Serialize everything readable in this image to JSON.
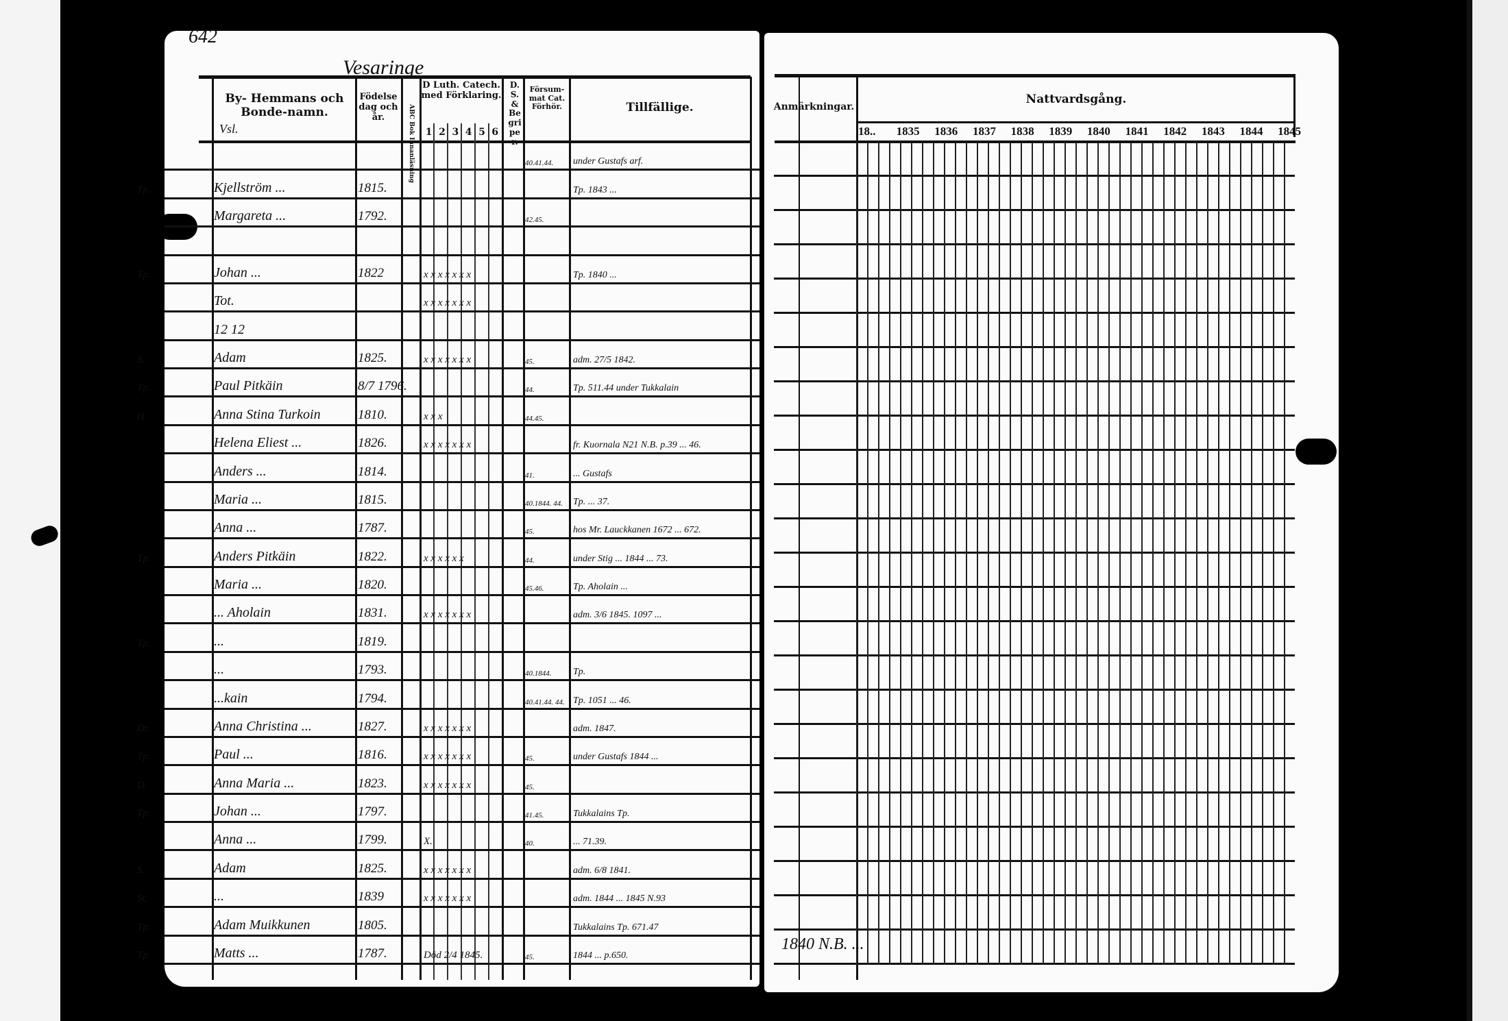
{
  "page_number": "642",
  "parish_heading": "Vesaringe",
  "left_headers": {
    "name": "By- Hemmans och Bonde-namn.",
    "name_note": "Vsl.",
    "birth": "Födelse dag och år.",
    "abc": "ABC Bok Innanläsning",
    "catechism": "D Luth. Catech. med Förklaring.",
    "catechism_parts": [
      "1",
      "2",
      "3",
      "4",
      "5",
      "6"
    ],
    "ds": "D. S. & Begriper.",
    "missed": "Försum-mat Cat. Förhör.",
    "temporary": "Tillfällige."
  },
  "right_headers": {
    "remarks": "Anmärkningar.",
    "communion": "Nattvardsgång.",
    "years": [
      "18..",
      "1835",
      "1836",
      "1837",
      "1838",
      "1839",
      "1840",
      "1841",
      "1842",
      "1843",
      "1844",
      "1845"
    ]
  },
  "rows": [
    {
      "prefix": "",
      "name": "",
      "born": "",
      "marks": "",
      "missed": "40.41.44.",
      "note": "under Gustafs arf."
    },
    {
      "prefix": "Tp.",
      "name": "Kjellström ...",
      "born": "1815.",
      "marks": "",
      "missed": "",
      "note": "Tp. 1843 ..."
    },
    {
      "prefix": "",
      "name": "Margareta ...",
      "born": "1792.",
      "marks": "",
      "missed": "42.45.",
      "note": ""
    },
    {
      "prefix": "",
      "name": "",
      "born": "",
      "marks": "",
      "missed": "",
      "note": ""
    },
    {
      "prefix": "Tp.",
      "name": "Johan ...",
      "born": "1822",
      "marks": "x x x x x x x",
      "missed": "",
      "note": "Tp. 1840 ..."
    },
    {
      "prefix": "",
      "name": "Tot.",
      "born": "",
      "marks": "x x x x x x x",
      "missed": "",
      "note": ""
    },
    {
      "prefix": "",
      "name": "12   12",
      "born": "",
      "marks": "",
      "missed": "",
      "note": ""
    },
    {
      "prefix": "S.",
      "name": "Adam",
      "born": "1825.",
      "marks": "x x x x x x x",
      "missed": "45.",
      "note": "adm. 27/5 1842."
    },
    {
      "prefix": "Tp.",
      "name": "Paul Pitkäin",
      "born": "8/7 1796.",
      "marks": "",
      "missed": "44.",
      "note": "Tp. 511.44  under Tukkalain"
    },
    {
      "prefix": "H.",
      "name": "Anna Stina Turkoin",
      "born": "1810.",
      "marks": "x       x x",
      "missed": "44.45.",
      "note": ""
    },
    {
      "prefix": "",
      "name": "Helena Eliest ...",
      "born": "1826.",
      "marks": "x x x x x x x",
      "missed": "",
      "note": "fr. Kuornala N21 N.B. p.39 ... 46."
    },
    {
      "prefix": "",
      "name": "Anders ...",
      "born": "1814.",
      "marks": "",
      "missed": "41.",
      "note": "... Gustafs"
    },
    {
      "prefix": "",
      "name": "Maria ...",
      "born": "1815.",
      "marks": "",
      "missed": "40.1844. 44.",
      "note": "Tp. ... 37."
    },
    {
      "prefix": "",
      "name": "Anna ...",
      "born": "1787.",
      "marks": "",
      "missed": "45.",
      "note": "hos Mr. Lauckkanen 1672 ... 672."
    },
    {
      "prefix": "Tp.",
      "name": "Anders Pitkäin",
      "born": "1822.",
      "marks": "x x x x x x",
      "missed": "44.",
      "note": "under Stig ... 1844 ... 73."
    },
    {
      "prefix": "",
      "name": "Maria ...",
      "born": "1820.",
      "marks": "",
      "missed": "45.46.",
      "note": "Tp. Aholain ..."
    },
    {
      "prefix": "",
      "name": "... Aholain",
      "born": "1831.",
      "marks": "x x x x x x x",
      "missed": "",
      "note": "adm. 3/6 1845. 1097 ..."
    },
    {
      "prefix": "Tp.",
      "name": "...",
      "born": "1819.",
      "marks": "",
      "missed": "",
      "note": ""
    },
    {
      "prefix": "",
      "name": "...",
      "born": "1793.",
      "marks": "",
      "missed": "40.1844.",
      "note": "Tp."
    },
    {
      "prefix": "",
      "name": "...kain",
      "born": "1794.",
      "marks": "",
      "missed": "40.41.44. 44.",
      "note": "Tp. 1051 ... 46."
    },
    {
      "prefix": "Dr.",
      "name": "Anna Christina ...",
      "born": "1827.",
      "marks": "x x x x x x x",
      "missed": "",
      "note": "adm. 1847."
    },
    {
      "prefix": "Tp.",
      "name": "Paul ...",
      "born": "1816.",
      "marks": "x x x x x x x",
      "missed": "45.",
      "note": "under Gustafs 1844 ..."
    },
    {
      "prefix": "D.",
      "name": "Anna Maria ...",
      "born": "1823.",
      "marks": "x x x x x x x",
      "missed": "45.",
      "note": ""
    },
    {
      "prefix": "Tp.",
      "name": "Johan ...",
      "born": "1797.",
      "marks": "",
      "missed": "41.45.",
      "note": "Tukkalains Tp."
    },
    {
      "prefix": "",
      "name": "Anna ...",
      "born": "1799.",
      "marks": "X.",
      "missed": "40.",
      "note": "... 71.39."
    },
    {
      "prefix": "S.",
      "name": "Adam",
      "born": "1825.",
      "marks": "x x x x x x x",
      "missed": "",
      "note": "adm. 6/8 1841."
    },
    {
      "prefix": "St.",
      "name": "...",
      "born": "1839",
      "marks": "x x x x x x x",
      "missed": "",
      "note": "adm. 1844 ... 1845 N.93"
    },
    {
      "prefix": "Tp.",
      "name": "Adam Muikkunen",
      "born": "1805.",
      "marks": "",
      "missed": "",
      "note": "Tukkalains Tp. 671.47"
    },
    {
      "prefix": "Tp.",
      "name": "Matts ...",
      "born": "1787.",
      "marks": "Död 2/4 1845.",
      "missed": "45.",
      "note": "1844 ... p.650."
    }
  ],
  "bottom_note": "1840 N.B. ..."
}
